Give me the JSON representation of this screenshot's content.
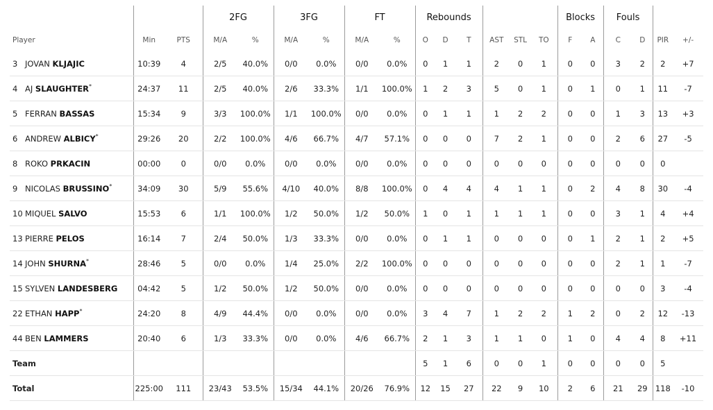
{
  "groups": {
    "fg2": "2FG",
    "fg3": "3FG",
    "ft": "FT",
    "rebounds": "Rebounds",
    "blocks": "Blocks",
    "fouls": "Fouls"
  },
  "headers": {
    "player": "Player",
    "min": "Min",
    "pts": "PTS",
    "fg2_ma": "M/A",
    "fg2_pct": "%",
    "fg3_ma": "M/A",
    "fg3_pct": "%",
    "ft_ma": "M/A",
    "ft_pct": "%",
    "reb_o": "O",
    "reb_d": "D",
    "reb_t": "T",
    "ast": "AST",
    "stl": "STL",
    "to": "TO",
    "blk_f": "F",
    "blk_a": "A",
    "foul_c": "C",
    "foul_d": "D",
    "pir": "PIR",
    "pm": "+/-"
  },
  "players": [
    {
      "num": "3",
      "first": "JOVAN",
      "last": "KLJAJIC",
      "star": "",
      "min": "10:39",
      "pts": "4",
      "fg2_ma": "2/5",
      "fg2_pct": "40.0%",
      "fg3_ma": "0/0",
      "fg3_pct": "0.0%",
      "ft_ma": "0/0",
      "ft_pct": "0.0%",
      "o": "0",
      "d": "1",
      "t": "1",
      "ast": "2",
      "stl": "0",
      "to": "1",
      "bf": "0",
      "ba": "0",
      "fc": "3",
      "fd": "2",
      "pir": "2",
      "pm": "+7"
    },
    {
      "num": "4",
      "first": "AJ",
      "last": "SLAUGHTER",
      "star": "*",
      "min": "24:37",
      "pts": "11",
      "fg2_ma": "2/5",
      "fg2_pct": "40.0%",
      "fg3_ma": "2/6",
      "fg3_pct": "33.3%",
      "ft_ma": "1/1",
      "ft_pct": "100.0%",
      "o": "1",
      "d": "2",
      "t": "3",
      "ast": "5",
      "stl": "0",
      "to": "1",
      "bf": "0",
      "ba": "1",
      "fc": "0",
      "fd": "1",
      "pir": "11",
      "pm": "-7"
    },
    {
      "num": "5",
      "first": "FERRAN",
      "last": "BASSAS",
      "star": "",
      "min": "15:34",
      "pts": "9",
      "fg2_ma": "3/3",
      "fg2_pct": "100.0%",
      "fg3_ma": "1/1",
      "fg3_pct": "100.0%",
      "ft_ma": "0/0",
      "ft_pct": "0.0%",
      "o": "0",
      "d": "1",
      "t": "1",
      "ast": "1",
      "stl": "2",
      "to": "2",
      "bf": "0",
      "ba": "0",
      "fc": "1",
      "fd": "3",
      "pir": "13",
      "pm": "+3"
    },
    {
      "num": "6",
      "first": "ANDREW",
      "last": "ALBICY",
      "star": "*",
      "min": "29:26",
      "pts": "20",
      "fg2_ma": "2/2",
      "fg2_pct": "100.0%",
      "fg3_ma": "4/6",
      "fg3_pct": "66.7%",
      "ft_ma": "4/7",
      "ft_pct": "57.1%",
      "o": "0",
      "d": "0",
      "t": "0",
      "ast": "7",
      "stl": "2",
      "to": "1",
      "bf": "0",
      "ba": "0",
      "fc": "2",
      "fd": "6",
      "pir": "27",
      "pm": "-5"
    },
    {
      "num": "8",
      "first": "ROKO",
      "last": "PRKACIN",
      "star": "",
      "min": "00:00",
      "pts": "0",
      "fg2_ma": "0/0",
      "fg2_pct": "0.0%",
      "fg3_ma": "0/0",
      "fg3_pct": "0.0%",
      "ft_ma": "0/0",
      "ft_pct": "0.0%",
      "o": "0",
      "d": "0",
      "t": "0",
      "ast": "0",
      "stl": "0",
      "to": "0",
      "bf": "0",
      "ba": "0",
      "fc": "0",
      "fd": "0",
      "pir": "0",
      "pm": ""
    },
    {
      "num": "9",
      "first": "NICOLAS",
      "last": "BRUSSINO",
      "star": "*",
      "min": "34:09",
      "pts": "30",
      "fg2_ma": "5/9",
      "fg2_pct": "55.6%",
      "fg3_ma": "4/10",
      "fg3_pct": "40.0%",
      "ft_ma": "8/8",
      "ft_pct": "100.0%",
      "o": "0",
      "d": "4",
      "t": "4",
      "ast": "4",
      "stl": "1",
      "to": "1",
      "bf": "0",
      "ba": "2",
      "fc": "4",
      "fd": "8",
      "pir": "30",
      "pm": "-4"
    },
    {
      "num": "10",
      "first": "MIQUEL",
      "last": "SALVO",
      "star": "",
      "min": "15:53",
      "pts": "6",
      "fg2_ma": "1/1",
      "fg2_pct": "100.0%",
      "fg3_ma": "1/2",
      "fg3_pct": "50.0%",
      "ft_ma": "1/2",
      "ft_pct": "50.0%",
      "o": "1",
      "d": "0",
      "t": "1",
      "ast": "1",
      "stl": "1",
      "to": "1",
      "bf": "0",
      "ba": "0",
      "fc": "3",
      "fd": "1",
      "pir": "4",
      "pm": "+4"
    },
    {
      "num": "13",
      "first": "PIERRE",
      "last": "PELOS",
      "star": "",
      "min": "16:14",
      "pts": "7",
      "fg2_ma": "2/4",
      "fg2_pct": "50.0%",
      "fg3_ma": "1/3",
      "fg3_pct": "33.3%",
      "ft_ma": "0/0",
      "ft_pct": "0.0%",
      "o": "0",
      "d": "1",
      "t": "1",
      "ast": "0",
      "stl": "0",
      "to": "0",
      "bf": "0",
      "ba": "1",
      "fc": "2",
      "fd": "1",
      "pir": "2",
      "pm": "+5"
    },
    {
      "num": "14",
      "first": "JOHN",
      "last": "SHURNA",
      "star": "*",
      "min": "28:46",
      "pts": "5",
      "fg2_ma": "0/0",
      "fg2_pct": "0.0%",
      "fg3_ma": "1/4",
      "fg3_pct": "25.0%",
      "ft_ma": "2/2",
      "ft_pct": "100.0%",
      "o": "0",
      "d": "0",
      "t": "0",
      "ast": "0",
      "stl": "0",
      "to": "0",
      "bf": "0",
      "ba": "0",
      "fc": "2",
      "fd": "1",
      "pir": "1",
      "pm": "-7"
    },
    {
      "num": "15",
      "first": "SYLVEN",
      "last": "LANDESBERG",
      "star": "",
      "min": "04:42",
      "pts": "5",
      "fg2_ma": "1/2",
      "fg2_pct": "50.0%",
      "fg3_ma": "1/2",
      "fg3_pct": "50.0%",
      "ft_ma": "0/0",
      "ft_pct": "0.0%",
      "o": "0",
      "d": "0",
      "t": "0",
      "ast": "0",
      "stl": "0",
      "to": "0",
      "bf": "0",
      "ba": "0",
      "fc": "0",
      "fd": "0",
      "pir": "3",
      "pm": "-4"
    },
    {
      "num": "22",
      "first": "ETHAN",
      "last": "HAPP",
      "star": "*",
      "min": "24:20",
      "pts": "8",
      "fg2_ma": "4/9",
      "fg2_pct": "44.4%",
      "fg3_ma": "0/0",
      "fg3_pct": "0.0%",
      "ft_ma": "0/0",
      "ft_pct": "0.0%",
      "o": "3",
      "d": "4",
      "t": "7",
      "ast": "1",
      "stl": "2",
      "to": "2",
      "bf": "1",
      "ba": "2",
      "fc": "0",
      "fd": "2",
      "pir": "12",
      "pm": "-13"
    },
    {
      "num": "44",
      "first": "BEN",
      "last": "LAMMERS",
      "star": "",
      "min": "20:40",
      "pts": "6",
      "fg2_ma": "1/3",
      "fg2_pct": "33.3%",
      "fg3_ma": "0/0",
      "fg3_pct": "0.0%",
      "ft_ma": "4/6",
      "ft_pct": "66.7%",
      "o": "2",
      "d": "1",
      "t": "3",
      "ast": "1",
      "stl": "1",
      "to": "0",
      "bf": "1",
      "ba": "0",
      "fc": "4",
      "fd": "4",
      "pir": "8",
      "pm": "+11"
    }
  ],
  "team": {
    "label": "Team",
    "o": "5",
    "d": "1",
    "t": "6",
    "ast": "0",
    "stl": "0",
    "to": "1",
    "bf": "0",
    "ba": "0",
    "fc": "0",
    "fd": "0",
    "pir": "5"
  },
  "total": {
    "label": "Total",
    "min": "225:00",
    "pts": "111",
    "fg2_ma": "23/43",
    "fg2_pct": "53.5%",
    "fg3_ma": "15/34",
    "fg3_pct": "44.1%",
    "ft_ma": "20/26",
    "ft_pct": "76.9%",
    "o": "12",
    "d": "15",
    "t": "27",
    "ast": "22",
    "stl": "9",
    "to": "10",
    "bf": "2",
    "ba": "6",
    "fc": "21",
    "fd": "29",
    "pir": "118",
    "pm": "-10"
  }
}
